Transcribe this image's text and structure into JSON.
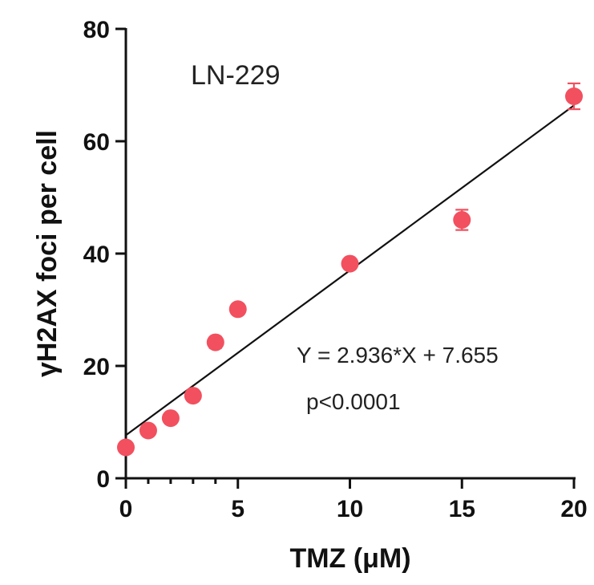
{
  "chart_data": {
    "type": "scatter",
    "title": "LN-229",
    "xlabel": "TMZ (μM)",
    "ylabel": "γH2AX foci per cell",
    "xlim": [
      0,
      20
    ],
    "ylim": [
      0,
      80
    ],
    "xticks": [
      "0",
      "5",
      "10",
      "15",
      "20"
    ],
    "yticks": [
      "0",
      "20",
      "40",
      "60",
      "80"
    ],
    "x_minor_ticks": [
      1,
      2,
      3,
      4
    ],
    "legend": "none",
    "grid": false,
    "series": [
      {
        "x": [
          0,
          1,
          2,
          3,
          4,
          5,
          10,
          15,
          20
        ],
        "y": [
          5.5,
          8.5,
          10.7,
          14.7,
          24.2,
          30.1,
          38.2,
          46.0,
          68.0
        ],
        "yerr": [
          0.8,
          0.8,
          0.8,
          0.8,
          1.0,
          0.9,
          0.9,
          1.8,
          2.3
        ],
        "color": "#f2505f"
      }
    ],
    "fit": {
      "slope": 2.936,
      "intercept": 7.655,
      "x_range": [
        0,
        20
      ],
      "equation": "Y = 2.936*X + 7.655",
      "p_value": "p<0.0001"
    }
  }
}
